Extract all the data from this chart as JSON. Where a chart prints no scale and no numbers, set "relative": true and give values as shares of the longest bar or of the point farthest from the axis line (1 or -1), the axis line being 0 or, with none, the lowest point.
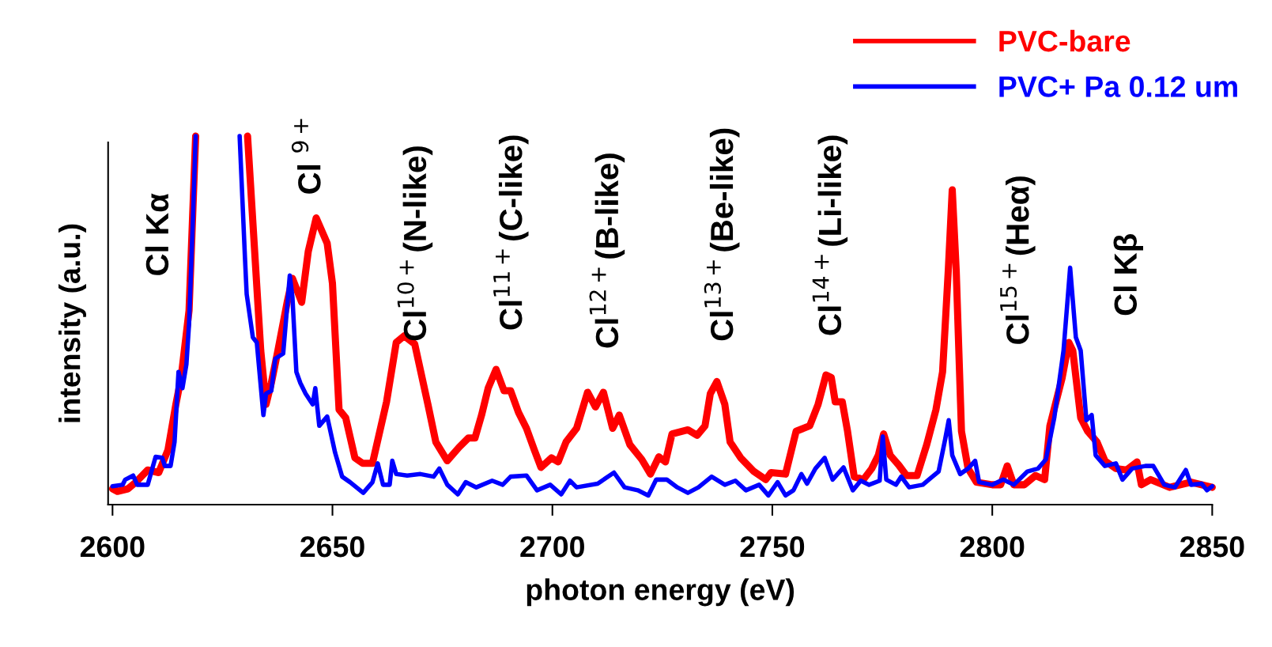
{
  "chart_data": {
    "type": "line",
    "relative": true,
    "xlabel": "photon energy (eV)",
    "ylabel": "intensity (a.u.)",
    "xlim": [
      2599,
      2850
    ],
    "xticks": [
      2600,
      2650,
      2700,
      2750,
      2800,
      2850
    ],
    "legend": "top right",
    "grid": false,
    "series": [
      {
        "name": "PVC-bare",
        "color": "#ff0000",
        "x": [
          2600,
          2601.1,
          2603.5,
          2605.3,
          2608.0,
          2610.5,
          2612.6,
          2614.4,
          2615.6,
          2617.4,
          2618.9,
          2624,
          2630.7,
          2632.2,
          2633.7,
          2634.9,
          2636.1,
          2637.6,
          2639.7,
          2640.9,
          2643.0,
          2644.5,
          2646.3,
          2648.8,
          2650.0,
          2651.5,
          2653.0,
          2655.1,
          2656.9,
          2659.1,
          2662.3,
          2664.5,
          2666.3,
          2668.7,
          2671.7,
          2673.5,
          2676.1,
          2678.8,
          2680.9,
          2682.4,
          2683.9,
          2685.4,
          2687.2,
          2689.0,
          2690.5,
          2692.3,
          2694.1,
          2695.9,
          2697.4,
          2699.8,
          2701.3,
          2703.1,
          2705.5,
          2708.0,
          2709.8,
          2711.6,
          2713.7,
          2715.2,
          2717.6,
          2720.3,
          2722.3,
          2724.2,
          2725.7,
          2727.2,
          2730.8,
          2732.9,
          2734.7,
          2735.9,
          2737.4,
          2739.2,
          2740.4,
          2742.8,
          2745.8,
          2748.5,
          2749.7,
          2753.0,
          2755.4,
          2758.5,
          2760.4,
          2762.2,
          2763.4,
          2764.3,
          2765.9,
          2767.1,
          2768.6,
          2770.7,
          2772.6,
          2774.1,
          2775.3,
          2776.8,
          2778.7,
          2780.5,
          2782.9,
          2785.1,
          2787.2,
          2788.7,
          2790.0,
          2790.9,
          2791.8,
          2793.0,
          2794.5,
          2796.4,
          2800.0,
          2801.9,
          2803.4,
          2804.9,
          2807.3,
          2809.8,
          2811.9,
          2813.1,
          2815.9,
          2817.4,
          2818.3,
          2820.1,
          2821.7,
          2823.8,
          2825.6,
          2828.1,
          2830.5,
          2832.9,
          2833.9,
          2836.0,
          2840.3,
          2845.2,
          2847.6,
          2850
        ],
        "values": [
          0.043,
          0.036,
          0.043,
          0.061,
          0.094,
          0.087,
          0.148,
          0.272,
          0.345,
          0.527,
          1,
          null,
          1,
          0.709,
          0.418,
          0.272,
          0.33,
          0.418,
          0.549,
          0.614,
          0.549,
          0.687,
          0.778,
          0.709,
          0.6,
          0.258,
          0.236,
          0.127,
          0.112,
          0.112,
          0.279,
          0.44,
          0.458,
          0.436,
          0.272,
          0.17,
          0.119,
          0.156,
          0.181,
          0.181,
          0.243,
          0.316,
          0.367,
          0.309,
          0.309,
          0.25,
          0.207,
          0.148,
          0.101,
          0.127,
          0.116,
          0.17,
          0.207,
          0.305,
          0.265,
          0.305,
          0.207,
          0.243,
          0.163,
          0.123,
          0.083,
          0.13,
          0.116,
          0.192,
          0.203,
          0.188,
          0.214,
          0.301,
          0.334,
          0.272,
          0.17,
          0.127,
          0.09,
          0.068,
          0.087,
          0.083,
          0.199,
          0.214,
          0.272,
          0.352,
          0.345,
          0.279,
          0.279,
          0.199,
          0.076,
          0.068,
          0.098,
          0.134,
          0.192,
          0.134,
          0.108,
          0.079,
          0.079,
          0.163,
          0.258,
          0.36,
          0.636,
          0.854,
          0.636,
          0.199,
          0.098,
          0.061,
          0.054,
          0.054,
          0.105,
          0.054,
          0.054,
          0.079,
          0.068,
          0.214,
          0.345,
          0.44,
          0.418,
          0.236,
          0.199,
          0.17,
          0.119,
          0.098,
          0.094,
          0.116,
          0.054,
          0.068,
          0.047,
          0.061,
          0.054,
          0.047
        ]
      },
      {
        "name": "PVC+ Pa 0.12 um",
        "color": "#0000ff",
        "x": [
          2600,
          2602.3,
          2602.9,
          2604.7,
          2605.6,
          2608.0,
          2609.8,
          2611.3,
          2611.9,
          2613.2,
          2614.1,
          2615.0,
          2615.9,
          2616.8,
          2617.4,
          2618.3,
          2618.9,
          2624,
          2628.9,
          2630.1,
          2630.5,
          2631.9,
          2632.8,
          2634.3,
          2634.9,
          2636.1,
          2637.0,
          2637.9,
          2638.8,
          2640.3,
          2640.9,
          2641.8,
          2642.7,
          2643.9,
          2645.5,
          2646.1,
          2647.0,
          2648.8,
          2650.6,
          2652.2,
          2654.0,
          2657.0,
          2659.1,
          2660.3,
          2661.5,
          2663.0,
          2663.6,
          2664.5,
          2667.0,
          2670.0,
          2673.0,
          2674.3,
          2676.1,
          2678.5,
          2680.3,
          2682.7,
          2686.3,
          2688.7,
          2690.5,
          2694.1,
          2696.5,
          2699.5,
          2702.0,
          2704.0,
          2705.5,
          2710.3,
          2714.0,
          2716.4,
          2719.4,
          2721.8,
          2723.6,
          2726.0,
          2728.4,
          2730.8,
          2733.2,
          2736.2,
          2739.2,
          2741.6,
          2744.0,
          2747.0,
          2749.1,
          2751.2,
          2753.0,
          2754.8,
          2756.6,
          2757.9,
          2759.8,
          2761.9,
          2763.7,
          2766.2,
          2768.3,
          2770.1,
          2772.0,
          2774.4,
          2775.1,
          2775.9,
          2778.1,
          2779.3,
          2781.1,
          2784.2,
          2786.0,
          2787.8,
          2789.3,
          2790.1,
          2790.9,
          2792.7,
          2794.5,
          2796.1,
          2797.0,
          2800.0,
          2802.5,
          2804.9,
          2808.0,
          2810.4,
          2812.2,
          2814.1,
          2816.2,
          2817.7,
          2819.0,
          2820.1,
          2821.4,
          2822.6,
          2823.5,
          2825.6,
          2828.1,
          2829.6,
          2831.8,
          2834.8,
          2836.6,
          2839.1,
          2841.5,
          2844.0,
          2845.2,
          2847.6,
          2848.8,
          2850
        ],
        "values": [
          0.05,
          0.054,
          0.068,
          0.079,
          0.054,
          0.054,
          0.13,
          0.127,
          0.105,
          0.105,
          0.17,
          0.36,
          0.316,
          0.381,
          0.491,
          0.782,
          1,
          null,
          1,
          0.672,
          0.571,
          0.454,
          0.44,
          0.243,
          0.301,
          0.309,
          0.396,
          0.403,
          0.41,
          0.622,
          0.563,
          0.36,
          0.33,
          0.301,
          0.272,
          0.316,
          0.214,
          0.239,
          0.141,
          0.076,
          0.061,
          0.032,
          0.061,
          0.112,
          0.054,
          0.054,
          0.119,
          0.083,
          0.079,
          0.083,
          0.076,
          0.098,
          0.054,
          0.028,
          0.061,
          0.047,
          0.065,
          0.054,
          0.076,
          0.079,
          0.039,
          0.054,
          0.028,
          0.065,
          0.047,
          0.057,
          0.087,
          0.047,
          0.039,
          0.025,
          0.068,
          0.068,
          0.047,
          0.032,
          0.047,
          0.076,
          0.054,
          0.065,
          0.039,
          0.054,
          0.025,
          0.061,
          0.025,
          0.039,
          0.083,
          0.057,
          0.098,
          0.127,
          0.068,
          0.101,
          0.039,
          0.065,
          0.054,
          0.065,
          0.185,
          0.068,
          0.054,
          0.076,
          0.047,
          0.054,
          0.072,
          0.09,
          0.178,
          0.229,
          0.134,
          0.083,
          0.098,
          0.119,
          0.061,
          0.054,
          0.068,
          0.054,
          0.09,
          0.098,
          0.123,
          0.236,
          0.418,
          0.643,
          0.454,
          0.418,
          0.229,
          0.243,
          0.134,
          0.105,
          0.112,
          0.068,
          0.098,
          0.105,
          0.105,
          0.054,
          0.047,
          0.094,
          0.054,
          0.057,
          0.039,
          0.05
        ]
      }
    ],
    "annotations": [
      "Cl Kα",
      "Cl $^{9+}$",
      "Cl$^{10+}$(N-like)",
      "Cl$^{11+}$(C-like)",
      "Cl$^{12+}$(B-like)",
      "Cl$^{13+}$(Be-like)",
      "Cl$^{14+}$(Li-like)",
      "Cl$^{15+}$(Heα)",
      "Cl Kβ"
    ]
  }
}
